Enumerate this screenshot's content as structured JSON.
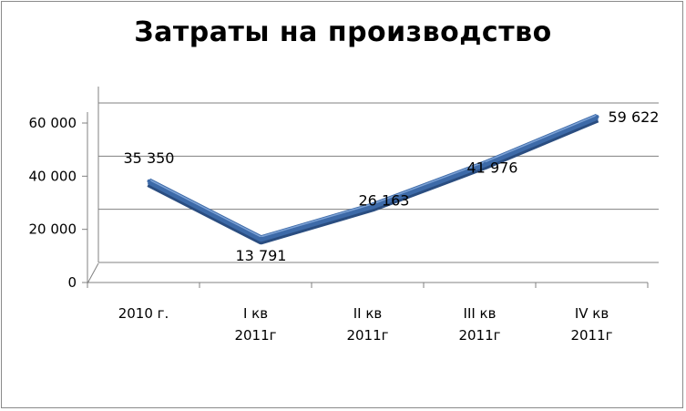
{
  "chart_data": {
    "type": "line",
    "title": "Затраты на производство",
    "categories": [
      [
        "2010 г."
      ],
      [
        "I кв",
        "2011г"
      ],
      [
        "II кв",
        "2011г"
      ],
      [
        "III кв",
        "2011г"
      ],
      [
        "IV кв",
        "2011г"
      ]
    ],
    "values": [
      35350,
      13791,
      26163,
      41976,
      59622
    ],
    "value_labels": [
      "35 350",
      "13 791",
      "26 163",
      "41 976",
      "59 622"
    ],
    "y_ticks": [
      {
        "value": 0,
        "label": "0"
      },
      {
        "value": 20000,
        "label": "20 000"
      },
      {
        "value": 40000,
        "label": "40 000"
      },
      {
        "value": 60000,
        "label": "60 000"
      }
    ],
    "ylim": [
      0,
      60000
    ],
    "grid": true,
    "legend": "none",
    "colors": {
      "line": "#3d6aa8",
      "line_dark": "#2a4d80",
      "grid": "#808080",
      "axis": "#808080"
    }
  }
}
